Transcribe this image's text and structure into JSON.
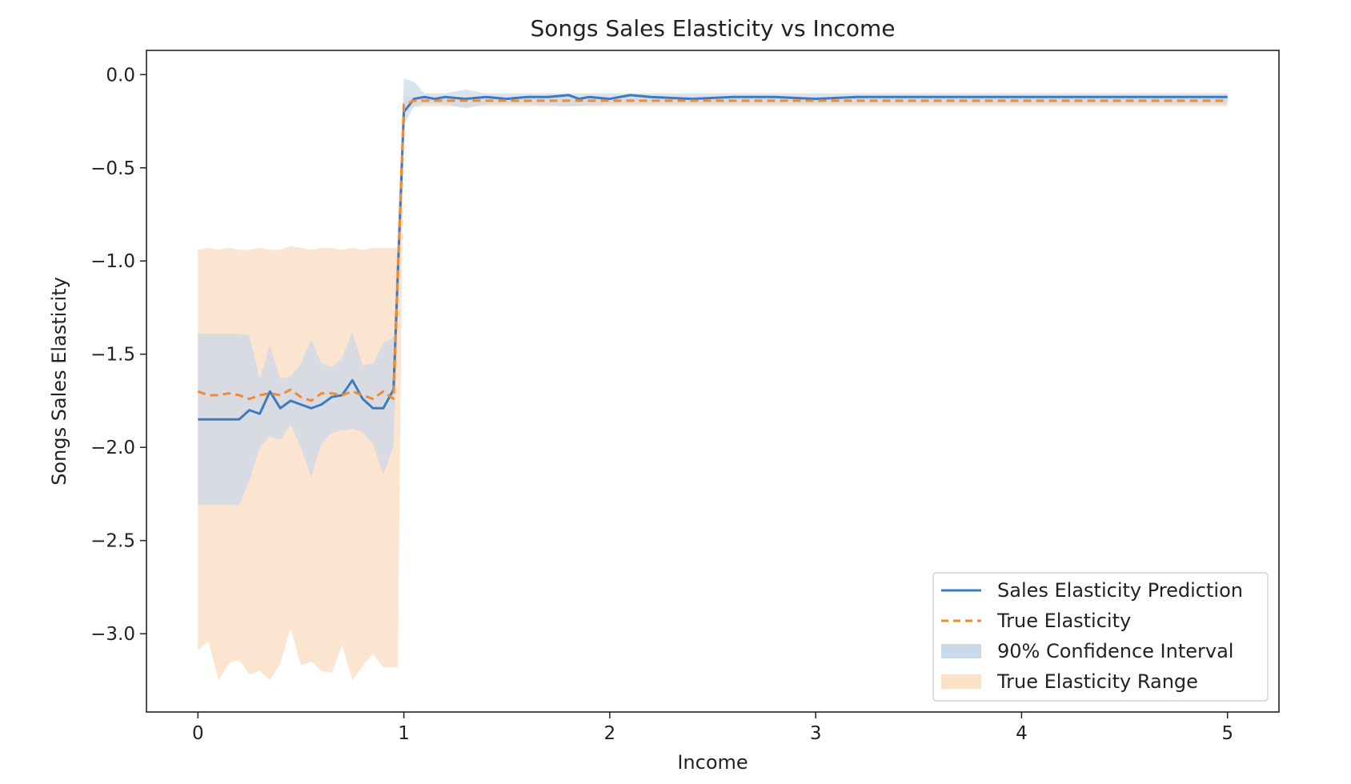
{
  "chart_data": {
    "type": "line",
    "title": "Songs Sales Elasticity vs Income",
    "xlabel": "Income",
    "ylabel": "Songs Sales Elasticity",
    "xlim": [
      -0.25,
      5.25
    ],
    "ylim": [
      -3.42,
      0.13
    ],
    "xticks": [
      0,
      1,
      2,
      3,
      4,
      5
    ],
    "xtick_labels": [
      "0",
      "1",
      "2",
      "3",
      "4",
      "5"
    ],
    "yticks": [
      0.0,
      -0.5,
      -1.0,
      -1.5,
      -2.0,
      -2.5,
      -3.0
    ],
    "ytick_labels": [
      "0.0",
      "−0.5",
      "−1.0",
      "−1.5",
      "−2.0",
      "−2.5",
      "−3.0"
    ],
    "grid": false,
    "legend_position": "bottom-right",
    "colors": {
      "prediction": "#3b7bbf",
      "true": "#f28a30",
      "confidence_fill": "#c9d9ea",
      "range_fill": "#fbe1c8",
      "axes": "#222222"
    },
    "series": [
      {
        "name": "Sales Elasticity Prediction",
        "style": "solid",
        "x": [
          0,
          0.05,
          0.1,
          0.15,
          0.2,
          0.25,
          0.3,
          0.35,
          0.4,
          0.45,
          0.5,
          0.55,
          0.6,
          0.65,
          0.7,
          0.75,
          0.8,
          0.85,
          0.9,
          0.95,
          1.0,
          1.05,
          1.1,
          1.15,
          1.2,
          1.3,
          1.4,
          1.5,
          1.6,
          1.7,
          1.8,
          1.85,
          1.9,
          2.0,
          2.1,
          2.2,
          2.4,
          2.6,
          2.8,
          3.0,
          3.2,
          3.4,
          3.6,
          3.8,
          4.0,
          4.2,
          4.4,
          4.6,
          4.8,
          5.0
        ],
        "y": [
          -1.85,
          -1.85,
          -1.85,
          -1.85,
          -1.85,
          -1.8,
          -1.82,
          -1.7,
          -1.79,
          -1.75,
          -1.77,
          -1.79,
          -1.77,
          -1.73,
          -1.72,
          -1.64,
          -1.74,
          -1.79,
          -1.79,
          -1.69,
          -0.2,
          -0.13,
          -0.12,
          -0.13,
          -0.12,
          -0.13,
          -0.12,
          -0.13,
          -0.12,
          -0.12,
          -0.11,
          -0.13,
          -0.12,
          -0.13,
          -0.11,
          -0.12,
          -0.13,
          -0.12,
          -0.12,
          -0.13,
          -0.12,
          -0.12,
          -0.12,
          -0.12,
          -0.12,
          -0.12,
          -0.12,
          -0.12,
          -0.12,
          -0.12
        ]
      },
      {
        "name": "True Elasticity",
        "style": "dashed",
        "x": [
          0,
          0.05,
          0.1,
          0.15,
          0.2,
          0.25,
          0.3,
          0.35,
          0.4,
          0.45,
          0.5,
          0.55,
          0.6,
          0.65,
          0.7,
          0.75,
          0.8,
          0.85,
          0.9,
          0.95,
          1.0,
          1.05,
          1.1,
          1.5,
          2.0,
          2.5,
          3.0,
          3.5,
          4.0,
          4.5,
          5.0
        ],
        "y": [
          -1.7,
          -1.72,
          -1.72,
          -1.71,
          -1.72,
          -1.74,
          -1.72,
          -1.71,
          -1.72,
          -1.69,
          -1.73,
          -1.75,
          -1.71,
          -1.71,
          -1.72,
          -1.7,
          -1.72,
          -1.74,
          -1.7,
          -1.74,
          -0.16,
          -0.14,
          -0.14,
          -0.14,
          -0.14,
          -0.14,
          -0.14,
          -0.14,
          -0.14,
          -0.14,
          -0.14
        ]
      }
    ],
    "bands": [
      {
        "name": "90% Confidence Interval",
        "x": [
          0,
          0.1,
          0.2,
          0.25,
          0.3,
          0.35,
          0.4,
          0.45,
          0.5,
          0.55,
          0.6,
          0.65,
          0.7,
          0.75,
          0.8,
          0.85,
          0.9,
          0.95,
          1.0,
          1.05,
          1.1,
          1.2,
          1.3,
          1.4,
          1.6,
          1.8,
          2.0,
          2.5,
          3.0,
          3.5,
          4.0,
          4.5,
          5.0
        ],
        "upper": [
          -1.39,
          -1.39,
          -1.39,
          -1.4,
          -1.63,
          -1.45,
          -1.63,
          -1.62,
          -1.55,
          -1.42,
          -1.55,
          -1.57,
          -1.52,
          -1.38,
          -1.56,
          -1.55,
          -1.44,
          -1.41,
          -0.02,
          -0.04,
          -0.1,
          -0.1,
          -0.08,
          -0.1,
          -0.1,
          -0.1,
          -0.1,
          -0.1,
          -0.1,
          -0.1,
          -0.1,
          -0.1,
          -0.1
        ],
        "lower": [
          -2.31,
          -2.31,
          -2.31,
          -2.18,
          -2.0,
          -1.94,
          -1.96,
          -1.88,
          -2.0,
          -2.16,
          -1.98,
          -1.92,
          -1.91,
          -1.9,
          -1.92,
          -1.98,
          -2.15,
          -1.99,
          -0.27,
          -0.17,
          -0.16,
          -0.16,
          -0.18,
          -0.16,
          -0.16,
          -0.17,
          -0.16,
          -0.16,
          -0.16,
          -0.16,
          -0.16,
          -0.16,
          -0.16
        ]
      },
      {
        "name": "True Elasticity Range",
        "x": [
          0,
          0.05,
          0.1,
          0.15,
          0.2,
          0.25,
          0.3,
          0.35,
          0.4,
          0.45,
          0.5,
          0.55,
          0.6,
          0.65,
          0.7,
          0.75,
          0.8,
          0.85,
          0.9,
          0.95,
          0.97,
          1.0,
          1.1,
          1.5,
          2.0,
          2.5,
          3.0,
          3.5,
          4.0,
          4.5,
          5.0
        ],
        "upper": [
          -0.94,
          -0.93,
          -0.94,
          -0.93,
          -0.94,
          -0.94,
          -0.93,
          -0.94,
          -0.94,
          -0.92,
          -0.93,
          -0.94,
          -0.93,
          -0.93,
          -0.94,
          -0.93,
          -0.94,
          -0.93,
          -0.93,
          -0.93,
          -0.93,
          -0.12,
          -0.12,
          -0.12,
          -0.12,
          -0.12,
          -0.12,
          -0.12,
          -0.12,
          -0.12,
          -0.12
        ],
        "lower": [
          -3.09,
          -3.04,
          -3.25,
          -3.16,
          -3.14,
          -3.22,
          -3.2,
          -3.25,
          -3.16,
          -2.97,
          -3.17,
          -3.15,
          -3.2,
          -3.21,
          -3.06,
          -3.25,
          -3.17,
          -3.11,
          -3.18,
          -3.18,
          -3.18,
          -0.18,
          -0.17,
          -0.17,
          -0.17,
          -0.17,
          -0.17,
          -0.17,
          -0.17,
          -0.17,
          -0.17
        ]
      }
    ],
    "legend": [
      {
        "label": "Sales Elasticity Prediction",
        "kind": "solid-line"
      },
      {
        "label": "True Elasticity",
        "kind": "dashed-line"
      },
      {
        "label": "90% Confidence Interval",
        "kind": "fill-confidence"
      },
      {
        "label": "True Elasticity Range",
        "kind": "fill-range"
      }
    ]
  }
}
